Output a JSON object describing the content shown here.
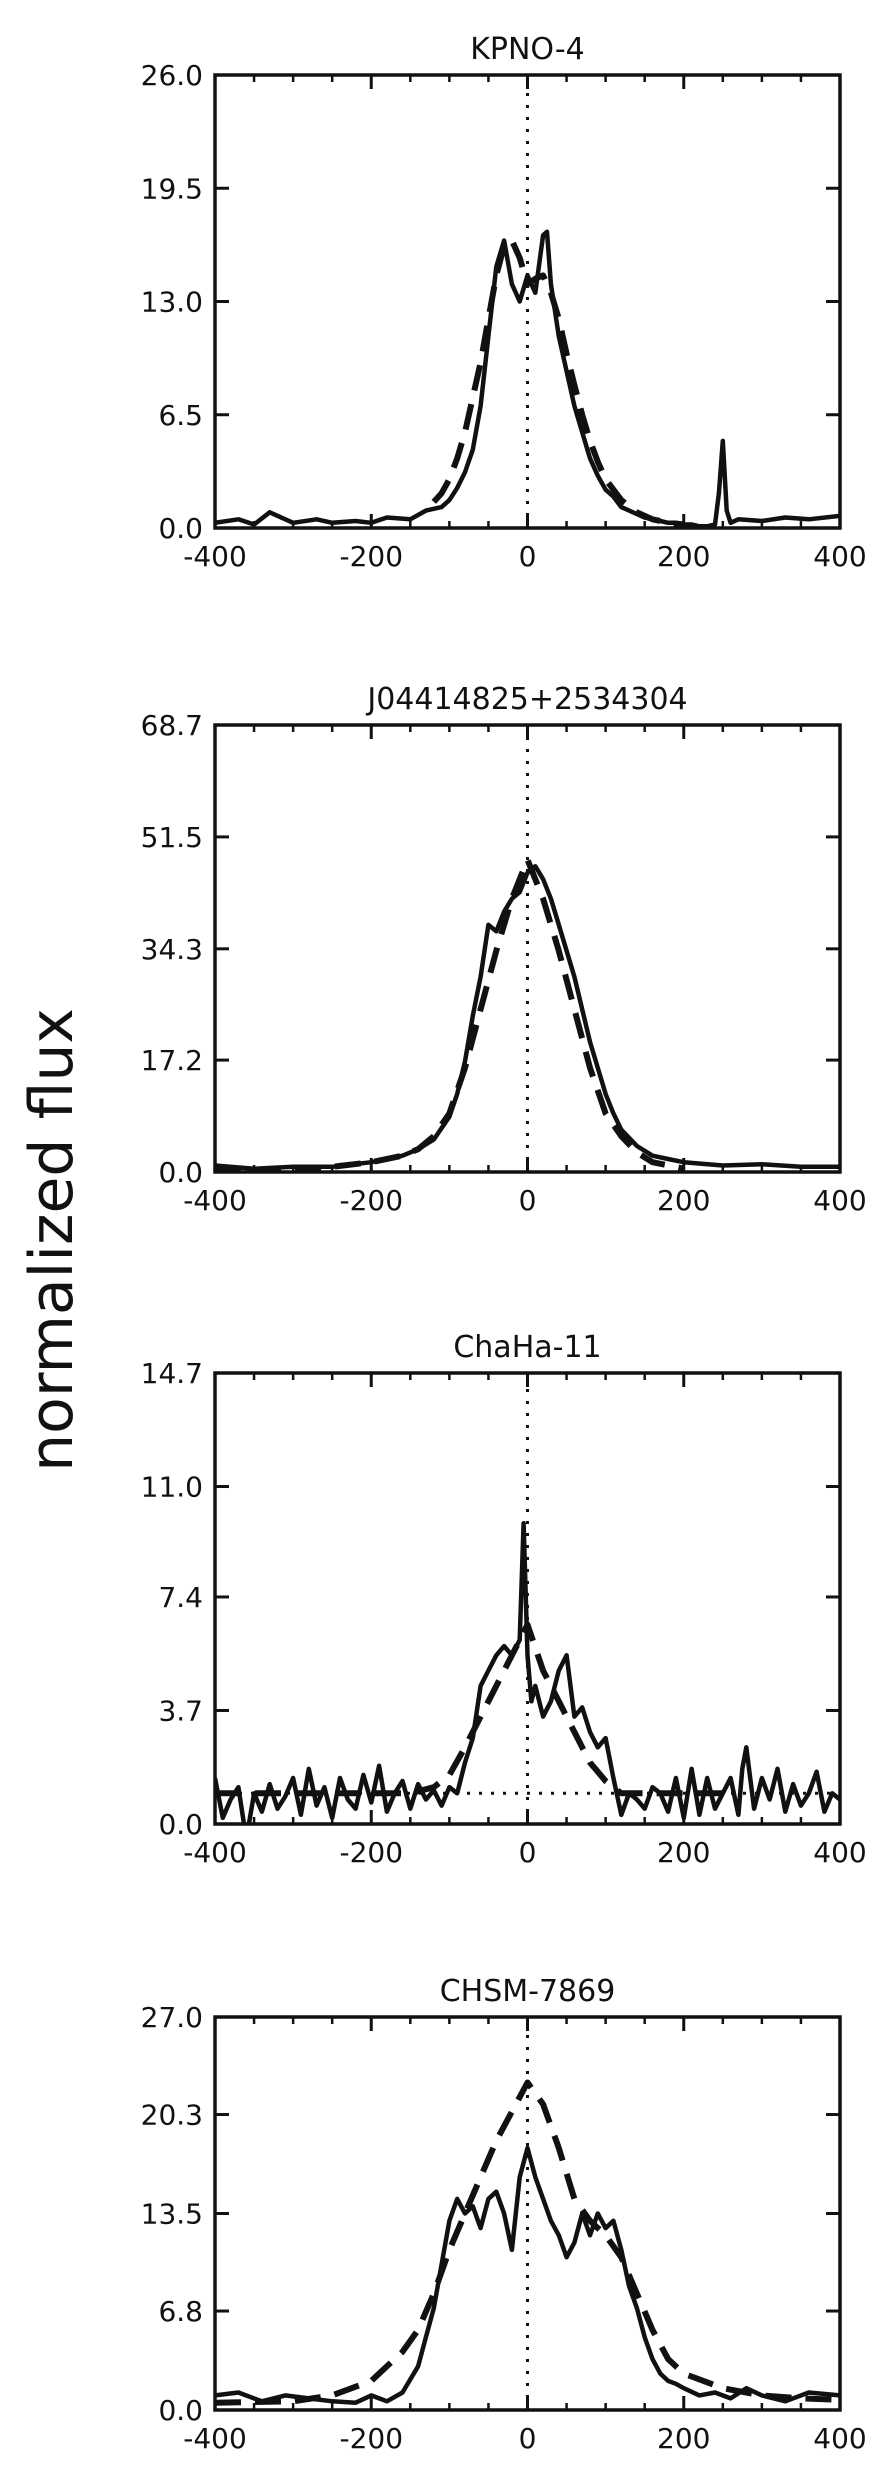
{
  "figure": {
    "ylabel": "normalized flux"
  },
  "chart_data": [
    {
      "type": "line",
      "title": "KPNO-4",
      "xlim": [
        -400,
        400
      ],
      "ylim": [
        0,
        26.0
      ],
      "x_ticks": [
        "-400",
        "-200",
        "0",
        "200",
        "400"
      ],
      "y_ticks": [
        "0.0",
        "6.5",
        "13.0",
        "19.5",
        "26.0"
      ],
      "series": [
        {
          "style": "solid",
          "x": [
            -400,
            -370,
            -350,
            -330,
            -300,
            -270,
            -250,
            -220,
            -200,
            -180,
            -150,
            -130,
            -110,
            -100,
            -90,
            -80,
            -70,
            -60,
            -50,
            -40,
            -30,
            -20,
            -10,
            0,
            10,
            20,
            25,
            30,
            40,
            50,
            60,
            70,
            80,
            90,
            100,
            110,
            120,
            130,
            140,
            150,
            160,
            170,
            180,
            190,
            200,
            210,
            220,
            230,
            240,
            245,
            250,
            255,
            260,
            270,
            300,
            330,
            360,
            400
          ],
          "y": [
            0.3,
            0.5,
            0.2,
            0.9,
            0.3,
            0.5,
            0.3,
            0.4,
            0.3,
            0.6,
            0.5,
            1.0,
            1.2,
            1.6,
            2.3,
            3.2,
            4.5,
            7.0,
            11.0,
            15.0,
            16.5,
            14.0,
            13.0,
            14.5,
            13.5,
            16.8,
            17.0,
            14.0,
            11.0,
            9.0,
            7.0,
            5.5,
            4.0,
            3.0,
            2.2,
            1.8,
            1.2,
            1.0,
            0.8,
            0.6,
            0.5,
            0.4,
            0.3,
            0.3,
            0.2,
            0.2,
            0.1,
            0.1,
            0.2,
            2.0,
            5.0,
            1.0,
            0.3,
            0.5,
            0.4,
            0.6,
            0.5,
            0.7
          ]
        },
        {
          "style": "dashed",
          "x": [
            -120,
            -110,
            -100,
            -90,
            -80,
            -70,
            -60,
            -50,
            -40,
            -30,
            -20,
            -10,
            0,
            10,
            20,
            30,
            40,
            50,
            60,
            70,
            80,
            90,
            100,
            120,
            140,
            160,
            180,
            200
          ],
          "y": [
            1.5,
            2.0,
            2.8,
            4.0,
            5.5,
            7.5,
            9.5,
            12.0,
            14.5,
            16.2,
            16.5,
            15.5,
            14.0,
            14.3,
            14.5,
            13.5,
            12.0,
            10.0,
            8.2,
            6.5,
            5.0,
            3.8,
            2.8,
            1.6,
            0.9,
            0.5,
            0.3,
            0.2
          ]
        },
        {
          "style": "dotted",
          "x": [
            -400,
            400
          ],
          "y": [
            0,
            0
          ]
        },
        {
          "style": "dotted",
          "x": [
            0,
            0
          ],
          "y": [
            0,
            26.0
          ]
        }
      ]
    },
    {
      "type": "line",
      "title": "J04414825+2534304",
      "xlim": [
        -400,
        400
      ],
      "ylim": [
        0,
        68.7
      ],
      "x_ticks": [
        "-400",
        "-200",
        "0",
        "200",
        "400"
      ],
      "y_ticks": [
        "0.0",
        "17.2",
        "34.3",
        "51.5",
        "68.7"
      ],
      "series": [
        {
          "style": "solid",
          "x": [
            -400,
            -350,
            -300,
            -250,
            -200,
            -180,
            -160,
            -140,
            -120,
            -100,
            -90,
            -80,
            -70,
            -60,
            -50,
            -40,
            -30,
            -20,
            -10,
            0,
            10,
            20,
            30,
            40,
            50,
            60,
            70,
            80,
            90,
            100,
            110,
            120,
            140,
            160,
            180,
            200,
            250,
            300,
            350,
            400
          ],
          "y": [
            1.0,
            0.5,
            0.8,
            0.8,
            1.5,
            2.0,
            2.5,
            3.5,
            5.0,
            8.5,
            12.0,
            17.0,
            24.0,
            30.0,
            38.0,
            37.0,
            40.0,
            42.0,
            43.0,
            46.0,
            47.0,
            45.0,
            42.0,
            38.0,
            34.0,
            30.0,
            25.0,
            20.0,
            16.0,
            12.0,
            9.0,
            6.5,
            4.0,
            2.5,
            2.0,
            1.5,
            1.0,
            1.2,
            0.8,
            0.8
          ]
        },
        {
          "style": "dashed",
          "x": [
            -400,
            -300,
            -250,
            -200,
            -160,
            -140,
            -120,
            -100,
            -80,
            -60,
            -40,
            -20,
            0,
            20,
            40,
            60,
            80,
            100,
            120,
            140,
            160,
            200
          ],
          "y": [
            0.2,
            0.4,
            0.8,
            1.5,
            2.5,
            3.5,
            5.5,
            9.0,
            16.0,
            25.0,
            34.0,
            42.0,
            48.0,
            42.0,
            34.0,
            25.0,
            16.0,
            9.0,
            5.5,
            3.0,
            1.5,
            0.5
          ]
        },
        {
          "style": "dotted",
          "x": [
            -400,
            400
          ],
          "y": [
            0,
            0
          ]
        },
        {
          "style": "dotted",
          "x": [
            0,
            0
          ],
          "y": [
            0,
            68.7
          ]
        }
      ]
    },
    {
      "type": "line",
      "title": "ChaHa-11",
      "xlim": [
        -400,
        400
      ],
      "ylim": [
        0,
        14.7
      ],
      "x_ticks": [
        "-400",
        "-200",
        "0",
        "200",
        "400"
      ],
      "y_ticks": [
        "0.0",
        "3.7",
        "7.4",
        "11.0",
        "14.7"
      ],
      "series": [
        {
          "style": "solid",
          "x": [
            -400,
            -390,
            -380,
            -370,
            -360,
            -350,
            -340,
            -330,
            -320,
            -310,
            -300,
            -290,
            -280,
            -270,
            -260,
            -250,
            -240,
            -230,
            -220,
            -210,
            -200,
            -190,
            -180,
            -170,
            -160,
            -150,
            -140,
            -130,
            -120,
            -110,
            -100,
            -90,
            -80,
            -70,
            -60,
            -50,
            -40,
            -30,
            -20,
            -10,
            -5,
            0,
            5,
            10,
            20,
            30,
            40,
            50,
            60,
            70,
            80,
            90,
            100,
            110,
            120,
            130,
            140,
            150,
            160,
            170,
            180,
            190,
            200,
            210,
            220,
            230,
            240,
            250,
            260,
            270,
            275,
            280,
            290,
            300,
            310,
            320,
            330,
            340,
            350,
            360,
            370,
            380,
            390,
            400
          ],
          "y": [
            1.5,
            0.2,
            0.8,
            1.2,
            -0.5,
            1.0,
            0.4,
            1.3,
            0.5,
            0.9,
            1.5,
            0.3,
            1.8,
            0.6,
            1.2,
            0.2,
            1.5,
            0.8,
            0.5,
            1.6,
            0.7,
            1.9,
            0.4,
            1.0,
            1.4,
            0.5,
            1.3,
            0.8,
            1.1,
            0.6,
            1.2,
            1.0,
            2.0,
            2.8,
            4.5,
            5.0,
            5.5,
            5.8,
            5.5,
            6.0,
            9.8,
            5.5,
            4.0,
            4.5,
            3.5,
            4.0,
            5.0,
            5.5,
            3.5,
            3.8,
            3.0,
            2.5,
            2.8,
            1.5,
            0.3,
            1.0,
            0.8,
            0.5,
            1.2,
            1.0,
            0.4,
            1.5,
            0.2,
            1.8,
            0.3,
            1.5,
            0.5,
            1.0,
            1.5,
            0.3,
            1.8,
            2.5,
            0.5,
            1.5,
            0.8,
            1.8,
            0.4,
            1.3,
            0.6,
            1.0,
            1.7,
            0.4,
            1.0,
            0.8
          ]
        },
        {
          "style": "dashed",
          "x": [
            -400,
            -300,
            -200,
            -150,
            -120,
            -100,
            -80,
            -60,
            -40,
            -20,
            0,
            20,
            40,
            60,
            80,
            100,
            120,
            150,
            200,
            250
          ],
          "y": [
            1.0,
            1.0,
            1.0,
            1.0,
            1.2,
            1.6,
            2.5,
            3.5,
            4.5,
            5.5,
            6.5,
            5.0,
            4.0,
            3.0,
            2.0,
            1.4,
            1.0,
            1.0,
            1.0,
            1.0
          ]
        },
        {
          "style": "dotted",
          "x": [
            -400,
            400
          ],
          "y": [
            1.0,
            1.0
          ]
        },
        {
          "style": "dotted",
          "x": [
            0,
            0
          ],
          "y": [
            0,
            14.7
          ]
        }
      ]
    },
    {
      "type": "line",
      "title": "CHSM-7869",
      "xlim": [
        -400,
        400
      ],
      "ylim": [
        0,
        27.0
      ],
      "x_ticks": [
        "-400",
        "-200",
        "0",
        "200",
        "400"
      ],
      "y_ticks": [
        "0.0",
        "6.8",
        "13.5",
        "20.3",
        "27.0"
      ],
      "series": [
        {
          "style": "solid",
          "x": [
            -400,
            -370,
            -340,
            -310,
            -280,
            -250,
            -220,
            -200,
            -180,
            -160,
            -140,
            -130,
            -120,
            -110,
            -100,
            -90,
            -80,
            -70,
            -60,
            -50,
            -40,
            -30,
            -20,
            -10,
            0,
            10,
            20,
            30,
            40,
            50,
            60,
            70,
            80,
            90,
            100,
            110,
            120,
            130,
            140,
            150,
            160,
            170,
            180,
            190,
            200,
            220,
            240,
            260,
            280,
            300,
            330,
            360,
            400
          ],
          "y": [
            1.0,
            1.2,
            0.6,
            1.0,
            0.8,
            0.6,
            0.5,
            1.0,
            0.6,
            1.2,
            3.0,
            5.0,
            7.0,
            10.0,
            13.0,
            14.5,
            13.5,
            14.0,
            12.5,
            14.5,
            15.0,
            13.5,
            11.0,
            16.0,
            18.0,
            16.0,
            14.5,
            13.0,
            12.0,
            10.5,
            11.5,
            13.5,
            12.0,
            13.5,
            12.5,
            13.0,
            11.0,
            8.5,
            7.0,
            5.0,
            3.5,
            2.5,
            2.0,
            1.8,
            1.5,
            1.0,
            1.2,
            0.8,
            1.5,
            1.0,
            0.6,
            1.2,
            1.0
          ]
        },
        {
          "style": "dashed",
          "x": [
            -400,
            -300,
            -250,
            -200,
            -180,
            -160,
            -140,
            -120,
            -100,
            -80,
            -60,
            -40,
            -20,
            0,
            20,
            40,
            60,
            80,
            100,
            120,
            140,
            160,
            180,
            200,
            250,
            300,
            350,
            400
          ],
          "y": [
            0.5,
            0.6,
            1.0,
            2.0,
            3.0,
            4.0,
            5.5,
            8.0,
            11.0,
            13.5,
            16.0,
            18.5,
            20.5,
            22.5,
            21.0,
            18.0,
            14.5,
            13.0,
            12.0,
            10.5,
            8.0,
            5.5,
            3.5,
            2.5,
            1.5,
            1.0,
            0.8,
            0.7
          ]
        },
        {
          "style": "dotted",
          "x": [
            -400,
            400
          ],
          "y": [
            0,
            0
          ]
        },
        {
          "style": "dotted",
          "x": [
            0,
            0
          ],
          "y": [
            0,
            27.0
          ]
        }
      ]
    }
  ]
}
